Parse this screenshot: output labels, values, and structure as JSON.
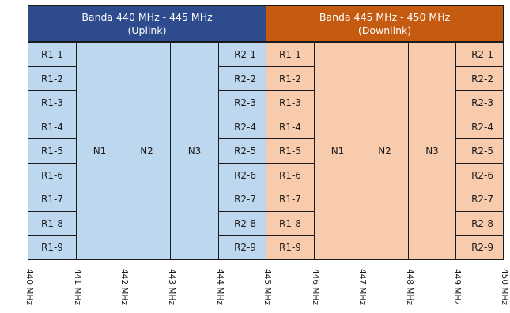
{
  "colors": {
    "uplink_header": "#2e4b8d",
    "downlink_header": "#c55a11",
    "uplink_fill": "#bdd7ee",
    "downlink_fill": "#f8cbad",
    "border": "#1a1a1a"
  },
  "bands": [
    {
      "id": "uplink",
      "title": "Banda 440 MHz - 445 MHz",
      "subtitle": "(Uplink)",
      "left_channels": [
        "R1-1",
        "R1-2",
        "R1-3",
        "R1-4",
        "R1-5",
        "R1-6",
        "R1-7",
        "R1-8",
        "R1-9"
      ],
      "middle_channels": [
        "N1",
        "N2",
        "N3"
      ],
      "right_channels": [
        "R2-1",
        "R2-2",
        "R2-3",
        "R2-4",
        "R2-5",
        "R2-6",
        "R2-7",
        "R2-8",
        "R2-9"
      ]
    },
    {
      "id": "downlink",
      "title": "Banda 445 MHz - 450 MHz",
      "subtitle": "(Downlink)",
      "left_channels": [
        "R1-1",
        "R1-2",
        "R1-3",
        "R1-4",
        "R1-5",
        "R1-6",
        "R1-7",
        "R1-8",
        "R1-9"
      ],
      "middle_channels": [
        "N1",
        "N2",
        "N3"
      ],
      "right_channels": [
        "R2-1",
        "R2-2",
        "R2-3",
        "R2-4",
        "R2-5",
        "R2-6",
        "R2-7",
        "R2-8",
        "R2-9"
      ]
    }
  ],
  "frequency_labels": [
    "440 MHz",
    "441 MHz",
    "442 MHz",
    "443 MHz",
    "444 MHz",
    "445 MHz",
    "446 MHz",
    "447 MHz",
    "448 MHz",
    "449 MHz",
    "450 MHz"
  ]
}
